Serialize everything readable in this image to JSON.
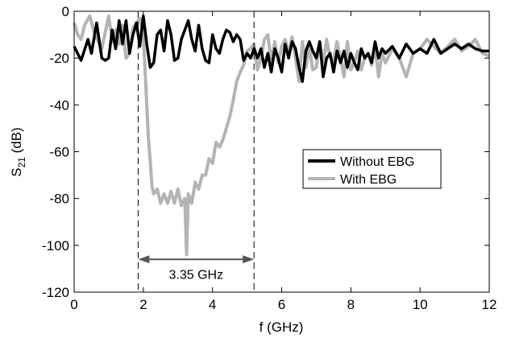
{
  "chart_data": {
    "type": "line",
    "xlabel": "f (GHz)",
    "ylabel_main": "S",
    "ylabel_sub": "21",
    "ylabel_unit": " (dB)",
    "xlim": [
      0,
      12
    ],
    "ylim": [
      -120,
      0
    ],
    "xticks": [
      0,
      2,
      4,
      6,
      8,
      10,
      12
    ],
    "yticks": [
      0,
      -20,
      -40,
      -60,
      -80,
      -100,
      -120
    ],
    "grid": false,
    "legend_position": "center-right",
    "series": [
      {
        "name": "Without EBG",
        "color": "#000000",
        "x": [
          0,
          0.2,
          0.4,
          0.5,
          0.65,
          0.8,
          0.9,
          1.0,
          1.1,
          1.2,
          1.3,
          1.4,
          1.5,
          1.6,
          1.7,
          1.8,
          1.9,
          2.0,
          2.1,
          2.2,
          2.3,
          2.4,
          2.5,
          2.6,
          2.7,
          2.8,
          2.9,
          3.0,
          3.1,
          3.2,
          3.3,
          3.4,
          3.5,
          3.6,
          3.7,
          3.8,
          3.9,
          4.0,
          4.1,
          4.2,
          4.3,
          4.4,
          4.5,
          4.6,
          4.7,
          4.8,
          4.9,
          5.0,
          5.1,
          5.2,
          5.3,
          5.4,
          5.5,
          5.6,
          5.7,
          5.8,
          5.9,
          6.0,
          6.1,
          6.2,
          6.3,
          6.4,
          6.5,
          6.6,
          6.7,
          6.8,
          6.9,
          7.0,
          7.1,
          7.2,
          7.3,
          7.4,
          7.5,
          7.6,
          7.7,
          7.8,
          7.9,
          8.0,
          8.1,
          8.2,
          8.3,
          8.4,
          8.5,
          8.6,
          8.7,
          8.8,
          8.9,
          9.0,
          9.2,
          9.4,
          9.6,
          9.8,
          10.0,
          10.2,
          10.4,
          10.6,
          10.8,
          11.0,
          11.2,
          11.4,
          11.6,
          11.8,
          12.0
        ],
        "values": [
          -15,
          -21,
          -12,
          -18,
          -5,
          -20,
          -21,
          -20,
          -8,
          -16,
          -4,
          -14,
          -4,
          -18,
          -10,
          -5,
          -15,
          -2,
          -14,
          -24,
          -22,
          -10,
          -8,
          -17,
          -4,
          -10,
          -21,
          -20,
          -12,
          -8,
          -4,
          -12,
          -17,
          -6,
          -16,
          -21,
          -22,
          -10,
          -16,
          -18,
          -12,
          -8,
          -9,
          -13,
          -10,
          -12,
          -21,
          -18,
          -20,
          -16,
          -20,
          -16,
          -24,
          -18,
          -26,
          -16,
          -20,
          -26,
          -14,
          -20,
          -13,
          -16,
          -24,
          -30,
          -17,
          -13,
          -17,
          -20,
          -13,
          -28,
          -20,
          -18,
          -26,
          -17,
          -22,
          -17,
          -24,
          -18,
          -22,
          -25,
          -16,
          -20,
          -18,
          -22,
          -13,
          -20,
          -16,
          -18,
          -15,
          -20,
          -14,
          -18,
          -16,
          -18,
          -12,
          -18,
          -16,
          -14,
          -16,
          -14,
          -16,
          -17,
          -17
        ]
      },
      {
        "name": "With EBG",
        "color": "#b4b4b4",
        "x": [
          0,
          0.1,
          0.2,
          0.3,
          0.45,
          0.6,
          0.8,
          1.0,
          1.1,
          1.2,
          1.3,
          1.4,
          1.5,
          1.6,
          1.7,
          1.8,
          1.9,
          2.0,
          2.05,
          2.1,
          2.15,
          2.2,
          2.25,
          2.3,
          2.4,
          2.5,
          2.6,
          2.7,
          2.8,
          2.9,
          3.0,
          3.1,
          3.2,
          3.25,
          3.3,
          3.4,
          3.5,
          3.6,
          3.7,
          3.8,
          3.9,
          4.0,
          4.1,
          4.2,
          4.3,
          4.4,
          4.5,
          4.6,
          4.7,
          4.8,
          4.9,
          5.0,
          5.1,
          5.2,
          5.3,
          5.4,
          5.5,
          5.6,
          5.7,
          5.8,
          5.9,
          6.0,
          6.1,
          6.2,
          6.3,
          6.4,
          6.5,
          6.6,
          6.7,
          6.8,
          6.9,
          7.0,
          7.1,
          7.2,
          7.3,
          7.4,
          7.5,
          7.6,
          7.7,
          7.8,
          7.9,
          8.0,
          8.1,
          8.2,
          8.3,
          8.4,
          8.5,
          8.6,
          8.7,
          8.8,
          8.9,
          9.0,
          9.2,
          9.4,
          9.6,
          9.8,
          10.0,
          10.2,
          10.4,
          10.6,
          10.8,
          11.0,
          11.2,
          11.4,
          11.6,
          11.8,
          12.0
        ],
        "values": [
          -5,
          -10,
          -12,
          -6,
          -2,
          -10,
          -16,
          -2,
          -13,
          -8,
          -14,
          -6,
          -20,
          -18,
          -7,
          -5,
          -3,
          -10,
          -25,
          -40,
          -55,
          -64,
          -75,
          -78,
          -76,
          -82,
          -78,
          -82,
          -77,
          -82,
          -76,
          -83,
          -80,
          -104,
          -78,
          -82,
          -73,
          -76,
          -70,
          -70,
          -63,
          -65,
          -56,
          -58,
          -55,
          -50,
          -45,
          -38,
          -30,
          -26,
          -23,
          -17,
          -16,
          -14,
          -25,
          -20,
          -12,
          -10,
          -22,
          -13,
          -22,
          -15,
          -12,
          -18,
          -11,
          -20,
          -30,
          -13,
          -24,
          -15,
          -25,
          -24,
          -13,
          -22,
          -12,
          -20,
          -21,
          -13,
          -20,
          -28,
          -13,
          -25,
          -22,
          -17,
          -25,
          -20,
          -18,
          -23,
          -15,
          -28,
          -18,
          -22,
          -16,
          -20,
          -28,
          -18,
          -16,
          -12,
          -15,
          -18,
          -15,
          -12,
          -17,
          -15,
          -12,
          -18,
          -19
        ]
      }
    ],
    "annotations": {
      "band_start": 1.85,
      "band_end": 5.2,
      "band_arrow_y": -106,
      "band_label": "3.35 GHz"
    }
  }
}
